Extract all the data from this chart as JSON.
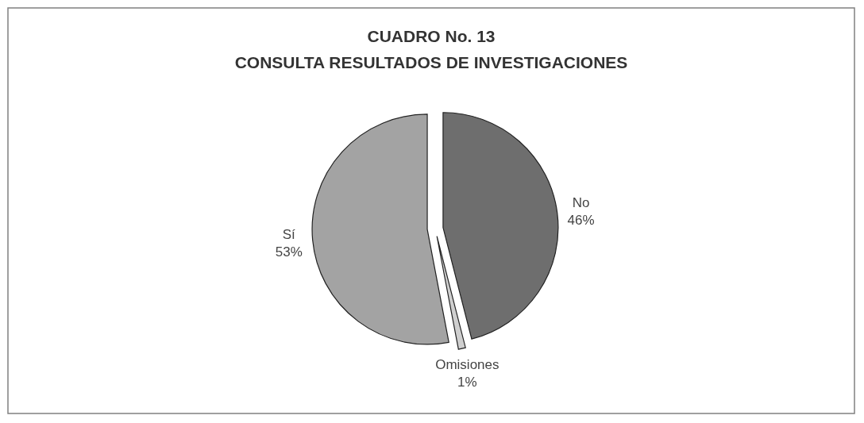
{
  "chart_data": {
    "type": "pie",
    "title": "CUADRO No. 13",
    "subtitle": "CONSULTA RESULTADOS DE INVESTIGACIONES",
    "categories": [
      "No",
      "Omisiones",
      "Sí"
    ],
    "values": [
      46,
      1,
      53
    ],
    "colors": [
      "#6e6e6e",
      "#cfcfcf",
      "#a3a3a3"
    ],
    "value_labels": [
      "46%",
      "1%",
      "53%"
    ]
  }
}
